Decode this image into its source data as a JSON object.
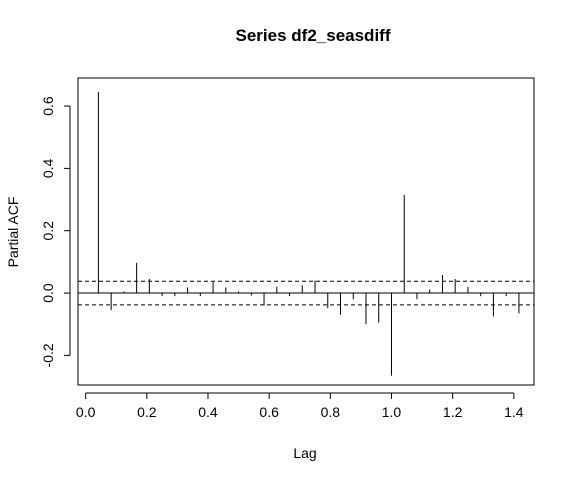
{
  "chart_data": {
    "type": "bar",
    "title": "Series  df2_seasdiff",
    "xlabel": "Lag",
    "ylabel": "Partial ACF",
    "xlim": [
      -0.025,
      1.466
    ],
    "ylim": [
      -0.295,
      0.69
    ],
    "x_ticks": [
      "0.0",
      "0.2",
      "0.4",
      "0.6",
      "0.8",
      "1.0",
      "1.2",
      "1.4"
    ],
    "y_ticks": [
      "-0.2",
      "0.0",
      "0.2",
      "0.4",
      "0.6"
    ],
    "confidence_band": [
      0.038,
      -0.038
    ],
    "grid": false,
    "lags": [
      0.0417,
      0.0833,
      0.125,
      0.1667,
      0.2083,
      0.25,
      0.2917,
      0.3333,
      0.375,
      0.4167,
      0.4583,
      0.5,
      0.5417,
      0.5833,
      0.625,
      0.6667,
      0.7083,
      0.75,
      0.7917,
      0.8333,
      0.875,
      0.9167,
      0.9583,
      1.0,
      1.0417,
      1.0833,
      1.125,
      1.1667,
      1.2083,
      1.25,
      1.2917,
      1.3333,
      1.375,
      1.4167
    ],
    "values": [
      0.645,
      -0.055,
      0.005,
      0.097,
      0.045,
      -0.01,
      -0.01,
      0.018,
      -0.01,
      0.035,
      0.018,
      0.005,
      -0.008,
      -0.04,
      0.02,
      -0.01,
      0.025,
      0.04,
      -0.048,
      -0.07,
      -0.02,
      -0.1,
      -0.095,
      -0.265,
      0.315,
      -0.02,
      0.012,
      0.058,
      0.045,
      0.02,
      -0.01,
      -0.075,
      -0.01,
      -0.065
    ]
  }
}
